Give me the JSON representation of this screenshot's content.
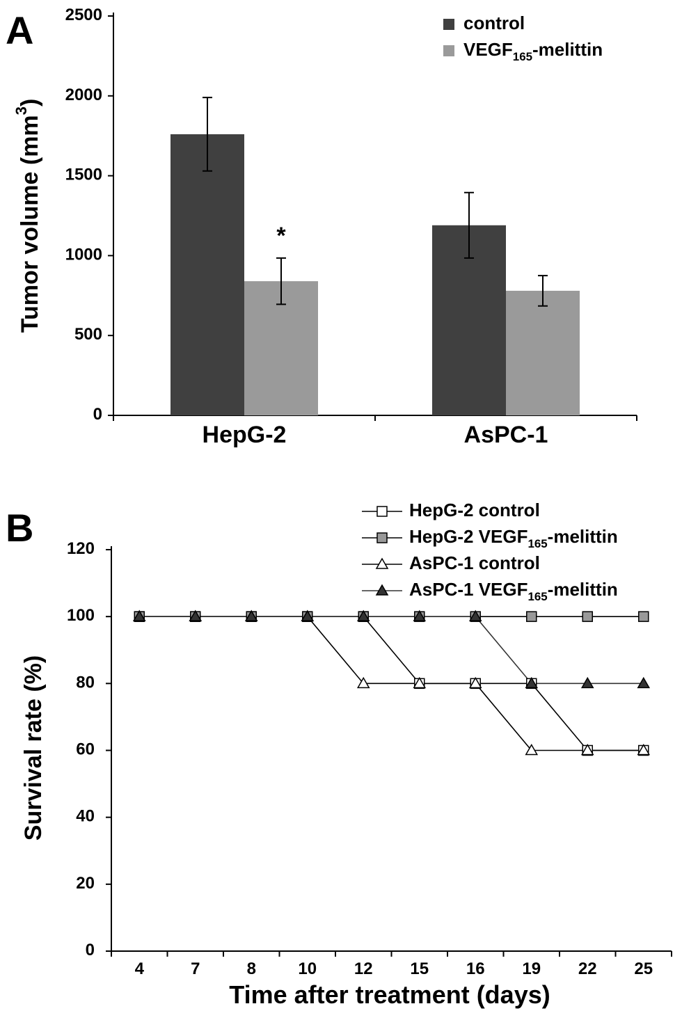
{
  "chart_data": [
    {
      "type": "bar",
      "panel_label": "A",
      "y_label": "Tumor volume (mm3)",
      "categories": [
        "HepG-2",
        "AsPC-1"
      ],
      "series": [
        {
          "name": "control",
          "color": "#404040",
          "values": [
            1760,
            1190
          ],
          "errors": [
            230,
            205
          ]
        },
        {
          "name": "VEGF165-melittin",
          "color": "#9a9a9a",
          "values": [
            840,
            780
          ],
          "errors": [
            145,
            95
          ]
        }
      ],
      "annotations": [
        {
          "text": "*",
          "series": 1,
          "index": 0
        }
      ],
      "ylim": [
        0,
        2500
      ],
      "yticks": [
        0,
        500,
        1000,
        1500,
        2000,
        2500
      ],
      "legend": "upper right"
    },
    {
      "type": "line",
      "panel_label": "B",
      "y_label": "Survival rate (%)",
      "x_label": "Time after treatment (days)",
      "categories": [
        "4",
        "7",
        "8",
        "10",
        "12",
        "15",
        "16",
        "19",
        "22",
        "25"
      ],
      "series": [
        {
          "name": "HepG-2 control",
          "color": "#000000",
          "marker": "square",
          "marker_fill": "#ffffff",
          "values": [
            100,
            100,
            100,
            100,
            100,
            80,
            80,
            80,
            60,
            60
          ]
        },
        {
          "name": "HepG-2 VEGF165-melittin",
          "color": "#000000",
          "marker": "square",
          "marker_fill": "#999999",
          "values": [
            100,
            100,
            100,
            100,
            100,
            100,
            100,
            100,
            100,
            100
          ]
        },
        {
          "name": "AsPC-1 control",
          "color": "#000000",
          "marker": "triangle",
          "marker_fill": "#ffffff",
          "values": [
            100,
            100,
            100,
            100,
            80,
            80,
            80,
            60,
            60,
            60
          ]
        },
        {
          "name": "AsPC-1 VEGF165-melittin",
          "color": "#333333",
          "marker": "triangle",
          "marker_fill": "#333333",
          "values": [
            100,
            100,
            100,
            100,
            100,
            100,
            100,
            80,
            80,
            80
          ]
        }
      ],
      "ylim": [
        0,
        120
      ],
      "yticks": [
        0,
        20,
        40,
        60,
        80,
        100,
        120
      ],
      "legend": "upper right"
    }
  ]
}
